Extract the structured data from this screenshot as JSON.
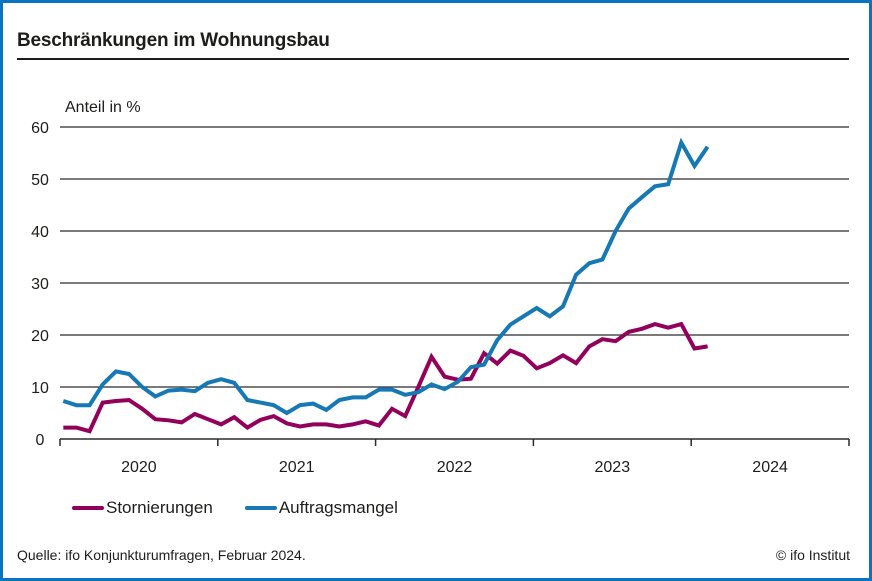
{
  "chart_data": {
    "type": "line",
    "title": "Beschränkungen im Wohnungsbau",
    "ylabel": "Anteil in %",
    "xlabel": "",
    "ylim": [
      0,
      60
    ],
    "yticks": [
      0,
      10,
      20,
      30,
      40,
      50,
      60
    ],
    "xlim_months": [
      0,
      60
    ],
    "x_tick_labels": [
      "2020",
      "2021",
      "2022",
      "2023",
      "2024"
    ],
    "grid": true,
    "legend_position": "bottom-left",
    "x": [
      "2020-01",
      "2020-02",
      "2020-03",
      "2020-04",
      "2020-05",
      "2020-06",
      "2020-07",
      "2020-08",
      "2020-09",
      "2020-10",
      "2020-11",
      "2020-12",
      "2021-01",
      "2021-02",
      "2021-03",
      "2021-04",
      "2021-05",
      "2021-06",
      "2021-07",
      "2021-08",
      "2021-09",
      "2021-10",
      "2021-11",
      "2021-12",
      "2022-01",
      "2022-02",
      "2022-03",
      "2022-04",
      "2022-05",
      "2022-06",
      "2022-07",
      "2022-08",
      "2022-09",
      "2022-10",
      "2022-11",
      "2022-12",
      "2023-01",
      "2023-02",
      "2023-03",
      "2023-04",
      "2023-05",
      "2023-06",
      "2023-07",
      "2023-08",
      "2023-09",
      "2023-10",
      "2023-11",
      "2023-12",
      "2024-01",
      "2024-02"
    ],
    "series": [
      {
        "name": "Stornierungen",
        "color": "#93005c",
        "values": [
          2.2,
          2.2,
          1.5,
          7.0,
          7.3,
          7.5,
          5.8,
          3.8,
          3.6,
          3.2,
          4.8,
          3.8,
          2.8,
          4.2,
          2.2,
          3.7,
          4.4,
          3.0,
          2.4,
          2.8,
          2.8,
          2.4,
          2.8,
          3.4,
          2.6,
          5.8,
          4.4,
          10.0,
          15.8,
          12.0,
          11.4,
          11.6,
          16.5,
          14.5,
          17.0,
          16.0,
          13.6,
          14.6,
          16.1,
          14.6,
          17.8,
          19.2,
          18.8,
          20.6,
          21.2,
          22.1,
          21.4,
          22.1,
          17.4,
          17.8
        ]
      },
      {
        "name": "Auftragsmangel",
        "color": "#1678b4",
        "values": [
          7.3,
          6.5,
          6.5,
          10.5,
          13.0,
          12.5,
          10.0,
          8.2,
          9.3,
          9.5,
          9.2,
          10.8,
          11.5,
          10.8,
          7.5,
          7.0,
          6.5,
          5.0,
          6.5,
          6.8,
          5.6,
          7.5,
          8.0,
          8.0,
          9.5,
          9.5,
          8.5,
          9.0,
          10.5,
          9.6,
          11.0,
          13.8,
          14.3,
          19.0,
          22.0,
          23.6,
          25.2,
          23.6,
          25.5,
          31.6,
          33.8,
          34.5,
          40.0,
          44.3,
          46.5,
          48.6,
          49.0,
          57.0,
          52.5,
          56.2
        ]
      }
    ]
  },
  "source": "Quelle: ifo Konjunkturumfragen, Februar 2024.",
  "copyright": "© ifo Institut",
  "colors": {
    "border": "#0a74c2",
    "text": "#1d1d1b",
    "grid": "#1d1d1b"
  }
}
